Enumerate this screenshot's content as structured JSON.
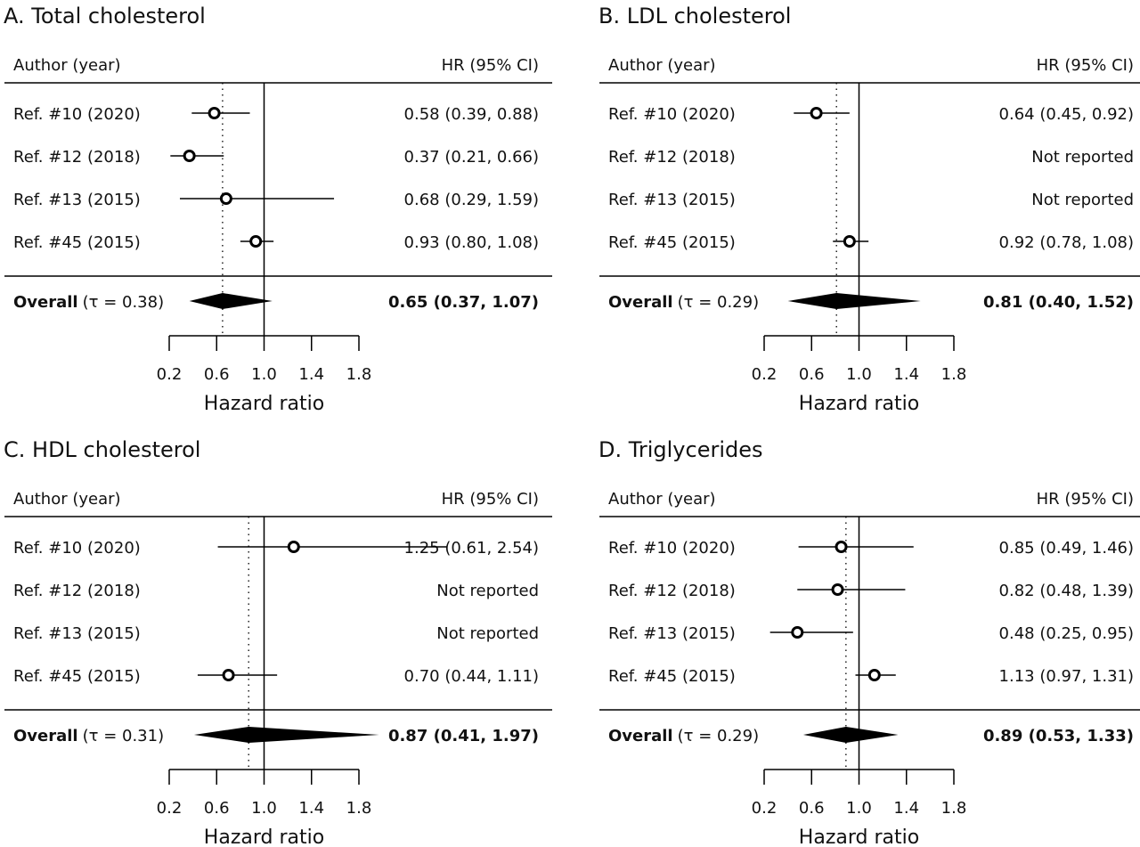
{
  "chart_data": [
    {
      "type": "forest",
      "title": "A. Total cholesterol",
      "header_left": "Author (year)",
      "header_right": "HR (95% CI)",
      "studies": [
        {
          "label": "Ref. #10 (2020)",
          "hr": 0.58,
          "lo": 0.39,
          "hi": 0.88,
          "text": "0.58 (0.39, 0.88)"
        },
        {
          "label": "Ref. #12 (2018)",
          "hr": 0.37,
          "lo": 0.21,
          "hi": 0.66,
          "text": "0.37 (0.21, 0.66)"
        },
        {
          "label": "Ref. #13 (2015)",
          "hr": 0.68,
          "lo": 0.29,
          "hi": 1.59,
          "text": "0.68 (0.29, 1.59)"
        },
        {
          "label": "Ref. #45 (2015)",
          "hr": 0.93,
          "lo": 0.8,
          "hi": 1.08,
          "text": "0.93 (0.80, 1.08)"
        }
      ],
      "overall": {
        "label": "Overall",
        "tau": "(τ = 0.38)",
        "hr": 0.65,
        "lo": 0.37,
        "hi": 1.07,
        "text": "0.65 (0.37, 1.07)"
      },
      "xticks": [
        "0.2",
        "0.6",
        "1.0",
        "1.4",
        "1.8"
      ],
      "xlim": [
        0.2,
        1.8
      ],
      "reference_line": 1.0,
      "xlabel": "Hazard ratio"
    },
    {
      "type": "forest",
      "title": "B. LDL cholesterol",
      "header_left": "Author (year)",
      "header_right": "HR (95% CI)",
      "studies": [
        {
          "label": "Ref. #10 (2020)",
          "hr": 0.64,
          "lo": 0.45,
          "hi": 0.92,
          "text": "0.64 (0.45, 0.92)"
        },
        {
          "label": "Ref. #12 (2018)",
          "hr": null,
          "lo": null,
          "hi": null,
          "text": "Not reported"
        },
        {
          "label": "Ref. #13 (2015)",
          "hr": null,
          "lo": null,
          "hi": null,
          "text": "Not reported"
        },
        {
          "label": "Ref. #45 (2015)",
          "hr": 0.92,
          "lo": 0.78,
          "hi": 1.08,
          "text": "0.92 (0.78, 1.08)"
        }
      ],
      "overall": {
        "label": "Overall",
        "tau": "(τ = 0.29)",
        "hr": 0.81,
        "lo": 0.4,
        "hi": 1.52,
        "text": "0.81 (0.40, 1.52)"
      },
      "xticks": [
        "0.2",
        "0.6",
        "1.0",
        "1.4",
        "1.8"
      ],
      "xlim": [
        0.2,
        1.8
      ],
      "reference_line": 1.0,
      "xlabel": "Hazard ratio"
    },
    {
      "type": "forest",
      "title": "C. HDL cholesterol",
      "header_left": "Author  (year)",
      "header_right": "HR (95% CI)",
      "studies": [
        {
          "label": "Ref. #10 (2020)",
          "hr": 1.25,
          "lo": 0.61,
          "hi": 2.54,
          "text": "1.25 (0.61, 2.54)"
        },
        {
          "label": "Ref. #12 (2018)",
          "hr": null,
          "lo": null,
          "hi": null,
          "text": "Not reported"
        },
        {
          "label": "Ref. #13 (2015)",
          "hr": null,
          "lo": null,
          "hi": null,
          "text": "Not reported"
        },
        {
          "label": "Ref. #45 (2015)",
          "hr": 0.7,
          "lo": 0.44,
          "hi": 1.11,
          "text": "0.70 (0.44, 1.11)"
        }
      ],
      "overall": {
        "label": "Overall",
        "tau": "(τ = 0.31)",
        "hr": 0.87,
        "lo": 0.41,
        "hi": 1.97,
        "text": "0.87 (0.41, 1.97)"
      },
      "xticks": [
        "0.2",
        "0.6",
        "1.0",
        "1.4",
        "1.8"
      ],
      "xlim": [
        0.2,
        1.8
      ],
      "reference_line": 1.0,
      "xlabel": "Hazard ratio"
    },
    {
      "type": "forest",
      "title": "D. Triglycerides",
      "header_left": "Author (year)",
      "header_right": "HR (95% CI)",
      "studies": [
        {
          "label": "Ref. #10 (2020)",
          "hr": 0.85,
          "lo": 0.49,
          "hi": 1.46,
          "text": "0.85 (0.49, 1.46)"
        },
        {
          "label": "Ref. #12 (2018)",
          "hr": 0.82,
          "lo": 0.48,
          "hi": 1.39,
          "text": "0.82 (0.48, 1.39)"
        },
        {
          "label": "Ref. #13 (2015)",
          "hr": 0.48,
          "lo": 0.25,
          "hi": 0.95,
          "text": "0.48 (0.25, 0.95)"
        },
        {
          "label": "Ref. #45 (2015)",
          "hr": 1.13,
          "lo": 0.97,
          "hi": 1.31,
          "text": "1.13 (0.97, 1.31)"
        }
      ],
      "overall": {
        "label": "Overall",
        "tau": "(τ = 0.29)",
        "hr": 0.89,
        "lo": 0.53,
        "hi": 1.33,
        "text": "0.89 (0.53, 1.33)"
      },
      "xticks": [
        "0.2",
        "0.6",
        "1.0",
        "1.4",
        "1.8"
      ],
      "xlim": [
        0.2,
        1.8
      ],
      "reference_line": 1.0,
      "xlabel": "Hazard ratio"
    }
  ]
}
